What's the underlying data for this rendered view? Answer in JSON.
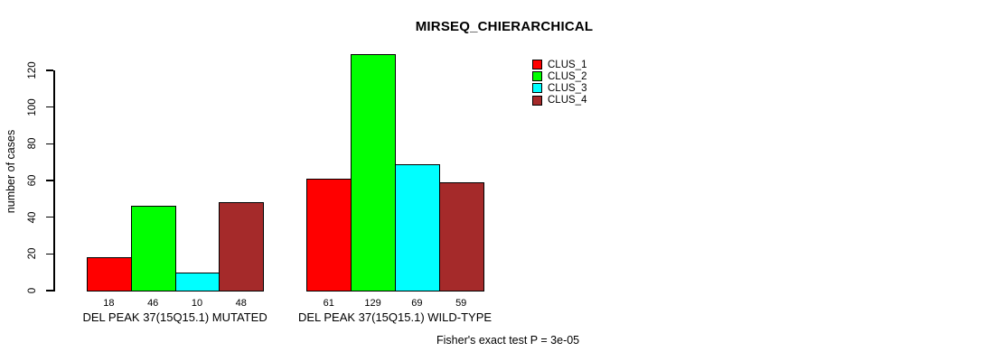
{
  "title": "MIRSEQ_CHIERARCHICAL",
  "footer": "Fisher's exact test P = 3e-05",
  "colors": {
    "background": "#FFFFFF",
    "axis": "#000000",
    "clus_1": "#FF0000",
    "clus_2": "#00FF00",
    "clus_3": "#00FFFF",
    "clus_4": "#A52A2A"
  },
  "chart_data": {
    "type": "bar",
    "title": "MIRSEQ_CHIERARCHICAL",
    "xlabel": "",
    "ylabel": "number of cases",
    "ylim": [
      0,
      130
    ],
    "yticks": [
      0,
      20,
      40,
      60,
      80,
      100,
      120
    ],
    "grid": false,
    "legend_position": "top-right",
    "categories": [
      "DEL PEAK 37(15Q15.1) MUTATED",
      "DEL PEAK 37(15Q15.1) WILD-TYPE"
    ],
    "series": [
      {
        "name": "CLUS_1",
        "color": "#FF0000",
        "values": [
          18,
          61
        ]
      },
      {
        "name": "CLUS_2",
        "color": "#00FF00",
        "values": [
          46,
          129
        ]
      },
      {
        "name": "CLUS_3",
        "color": "#00FFFF",
        "values": [
          10,
          69
        ]
      },
      {
        "name": "CLUS_4",
        "color": "#A52A2A",
        "values": [
          48,
          59
        ]
      }
    ],
    "bar_value_labels_shown": true,
    "annotation": "Fisher's exact test P = 3e-05"
  }
}
